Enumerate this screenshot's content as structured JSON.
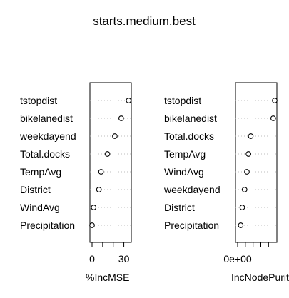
{
  "title": "starts.medium.best",
  "chart_data": [
    {
      "type": "scatter",
      "style": "dotchart",
      "xlabel": "%IncMSE",
      "xlim": [
        0,
        35
      ],
      "ticks": [
        0,
        10,
        20,
        30
      ],
      "tick_labels": {
        "0": "0",
        "30": "30"
      },
      "categories": [
        "tstopdist",
        "bikelanedist",
        "weekdayend",
        "Total.docks",
        "TempAvg",
        "District",
        "WindAvg",
        "Precipitation"
      ],
      "values": [
        34.5,
        27.5,
        21.5,
        14.5,
        8.5,
        6.5,
        1.5,
        0
      ]
    },
    {
      "type": "scatter",
      "style": "dotchart",
      "xlabel": "IncNodePurity",
      "xlim": [
        0,
        48
      ],
      "ticks": [
        0,
        10,
        20,
        30,
        40
      ],
      "tick_labels": {
        "0": "0e+00"
      },
      "categories": [
        "tstopdist",
        "bikelanedist",
        "Total.docks",
        "TempAvg",
        "WindAvg",
        "weekdayend",
        "District",
        "Precipitation"
      ],
      "values": [
        48,
        46,
        17,
        14,
        12,
        9,
        6,
        4
      ]
    }
  ]
}
